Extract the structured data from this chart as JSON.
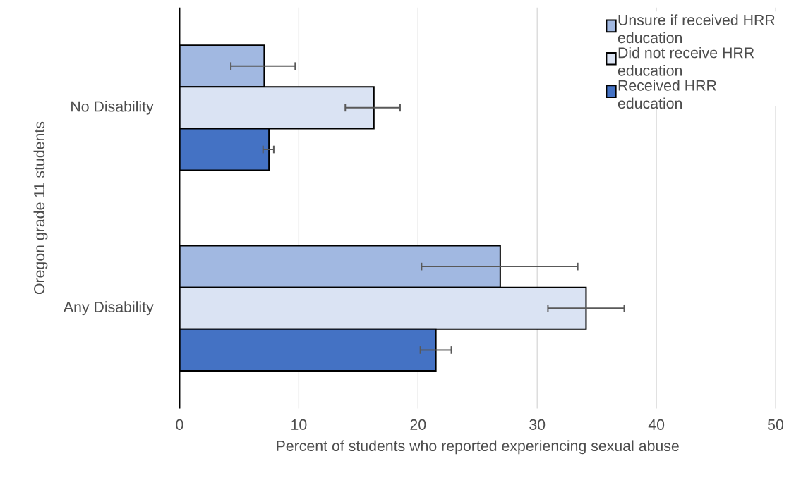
{
  "chart_data": {
    "type": "bar",
    "orientation": "horizontal",
    "xlabel": "Percent of students who reported experiencing sexual abuse",
    "ylabel": "Oregon grade 11 students",
    "categories": [
      "No Disability",
      "Any Disability"
    ],
    "series": [
      {
        "name": "Unsure if received HRR education",
        "color": "#a1b8e1",
        "values": [
          7.1,
          26.9
        ],
        "errors": [
          [
            4.3,
            9.7
          ],
          [
            20.3,
            33.4
          ]
        ]
      },
      {
        "name": "Did not receive HRR education",
        "color": "#dae3f3",
        "values": [
          16.3,
          34.1
        ],
        "errors": [
          [
            13.9,
            18.5
          ],
          [
            30.9,
            37.3
          ]
        ]
      },
      {
        "name": "Received HRR education",
        "color": "#4472c4",
        "values": [
          7.5,
          21.5
        ],
        "errors": [
          [
            7.0,
            7.9
          ],
          [
            20.2,
            22.8
          ]
        ]
      }
    ],
    "xlim": [
      0,
      50
    ],
    "xticks": [
      0,
      10,
      20,
      30,
      40,
      50
    ],
    "grid": "x",
    "legend": "top right"
  }
}
